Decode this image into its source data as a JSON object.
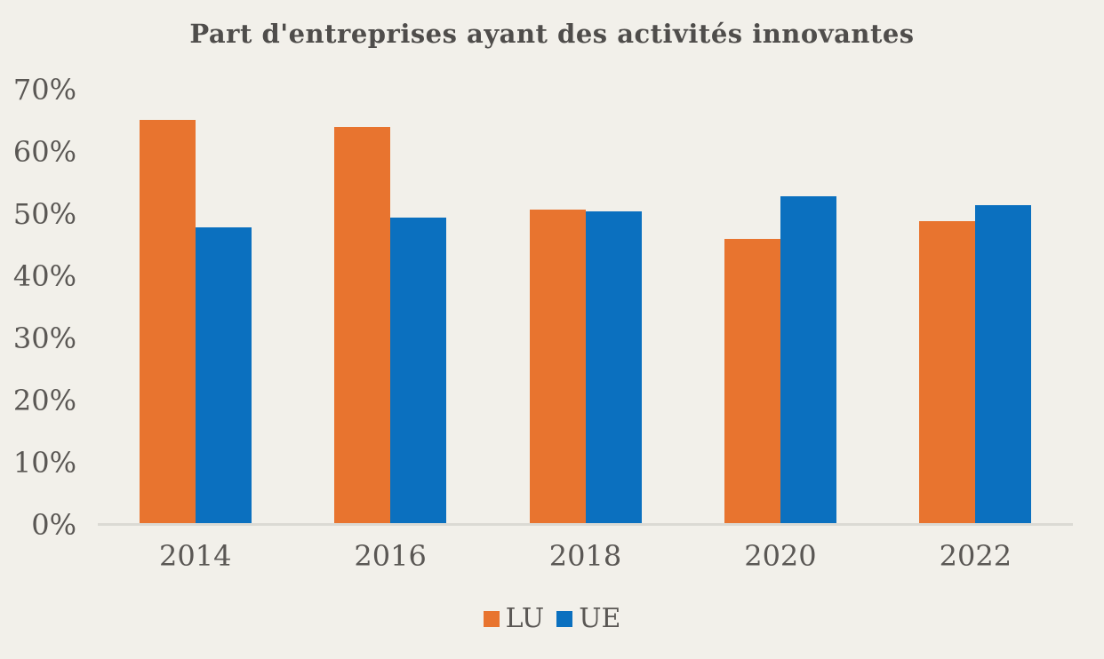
{
  "title": "Part d'entreprises ayant des activités innovantes",
  "colors": {
    "background": "#f2f0ea",
    "title_text": "#4f4d4b",
    "axis_text": "#5a5754",
    "axis_line": "#dbdad4",
    "lu_orange": "#e8742f",
    "ue_blue": "#0b70bf"
  },
  "chart_data": {
    "type": "bar",
    "title": "Part d'entreprises ayant des activités innovantes",
    "categories": [
      "2014",
      "2016",
      "2018",
      "2020",
      "2022"
    ],
    "series": [
      {
        "name": "LU",
        "color": "#e8742f",
        "values": [
          65.2,
          64.0,
          50.7,
          46.0,
          48.8
        ]
      },
      {
        "name": "UE",
        "color": "#0b70bf",
        "values": [
          47.8,
          49.5,
          50.4,
          52.8,
          51.5
        ]
      }
    ],
    "xlabel": "",
    "ylabel": "",
    "ylim": [
      0,
      70
    ],
    "ytick_step": 10,
    "ytick_labels": [
      "0%",
      "10%",
      "20%",
      "30%",
      "40%",
      "50%",
      "60%",
      "70%"
    ],
    "grid": false,
    "legend_position": "bottom"
  }
}
